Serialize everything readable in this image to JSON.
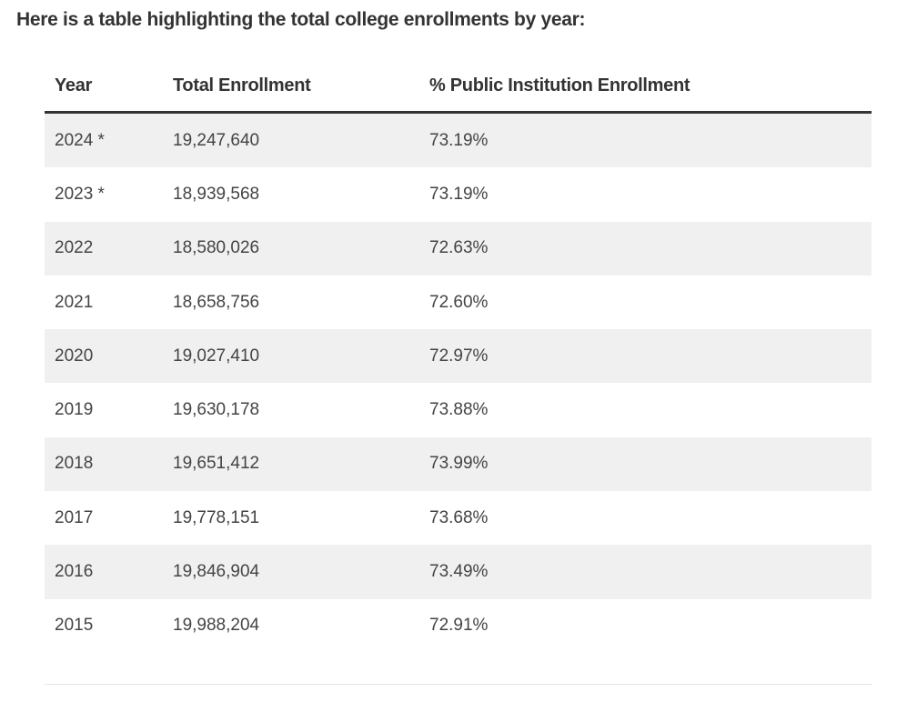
{
  "intro": "Here is a table highlighting the total college enrollments by year:",
  "table": {
    "headers": [
      "Year",
      "Total Enrollment",
      "% Public Institution Enrollment"
    ],
    "rows": [
      {
        "year": "2024 *",
        "total": "19,247,640",
        "pct": "73.19%"
      },
      {
        "year": "2023 *",
        "total": "18,939,568",
        "pct": "73.19%"
      },
      {
        "year": "2022",
        "total": "18,580,026",
        "pct": "72.63%"
      },
      {
        "year": "2021",
        "total": "18,658,756",
        "pct": "72.60%"
      },
      {
        "year": "2020",
        "total": "19,027,410",
        "pct": "72.97%"
      },
      {
        "year": "2019",
        "total": "19,630,178",
        "pct": "73.88%"
      },
      {
        "year": "2018",
        "total": "19,651,412",
        "pct": "73.99%"
      },
      {
        "year": "2017",
        "total": "19,778,151",
        "pct": "73.68%"
      },
      {
        "year": "2016",
        "total": "19,846,904",
        "pct": "73.49%"
      },
      {
        "year": "2015",
        "total": "19,988,204",
        "pct": "72.91%"
      }
    ]
  },
  "colors": {
    "text": "#333333",
    "cell_text": "#444444",
    "stripe": "#f0f0f0",
    "header_rule": "#333333",
    "bottom_rule": "#e6e6e6"
  }
}
